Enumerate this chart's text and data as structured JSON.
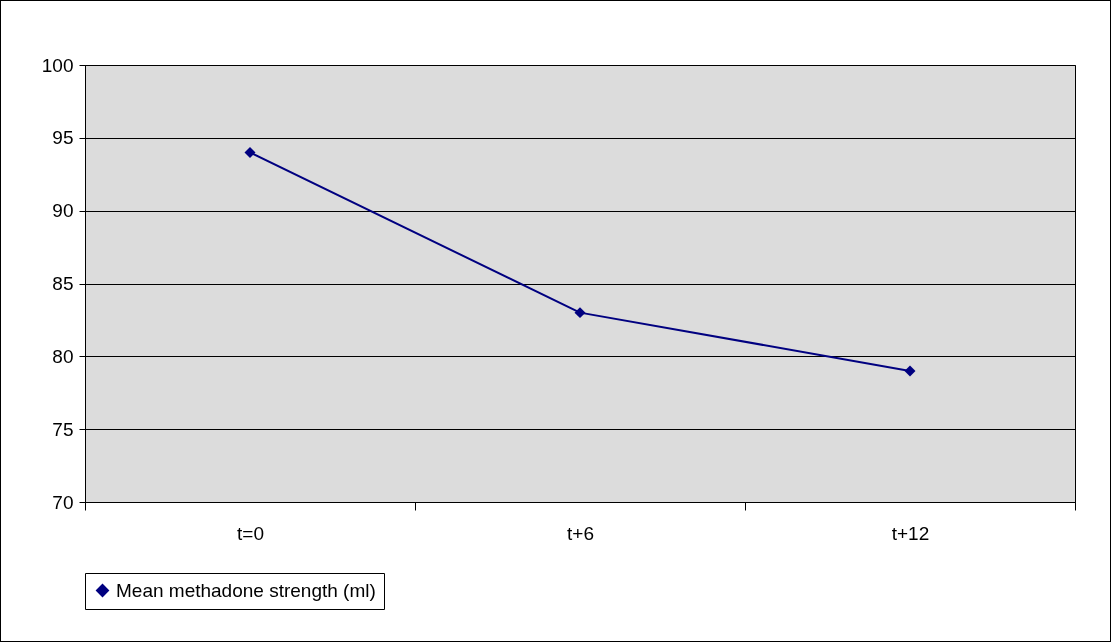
{
  "chart_data": {
    "type": "line",
    "categories": [
      "t=0",
      "t+6",
      "t+12"
    ],
    "series": [
      {
        "name": "Mean methadone strength (ml)",
        "color": "#000080",
        "values": [
          94,
          83,
          79
        ]
      }
    ],
    "ylim": [
      70,
      100
    ],
    "yticks": [
      70,
      75,
      80,
      85,
      90,
      95,
      100
    ],
    "grid": "y",
    "legend": "bottom",
    "marker": "diamond"
  }
}
